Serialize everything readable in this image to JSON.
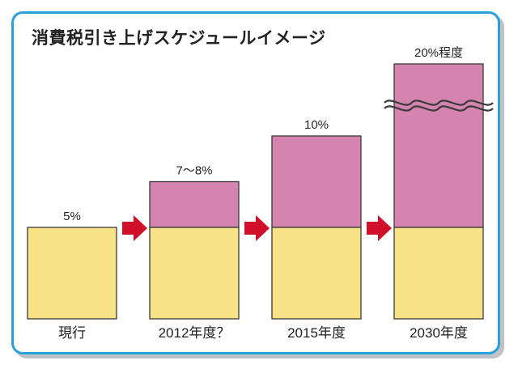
{
  "chart_data": {
    "type": "bar",
    "title": "消費税引き上げスケジュールイメージ",
    "categories": [
      "現行",
      "2012年度？",
      "2015年度",
      "2030年度"
    ],
    "value_labels": [
      "5%",
      "7～8%",
      "10%",
      "20%程度"
    ],
    "values": [
      5,
      7.5,
      10,
      20
    ],
    "base_value": 5,
    "axis_break_category": "2030年度",
    "xlabel": "",
    "ylabel": "",
    "legend": "none",
    "grid": false
  },
  "colors": {
    "base": "#f7e386",
    "increase": "#d484ae",
    "arrow": "#d0102a",
    "border": "#2a9fd8",
    "bar_outline": "#3a3a3a"
  }
}
